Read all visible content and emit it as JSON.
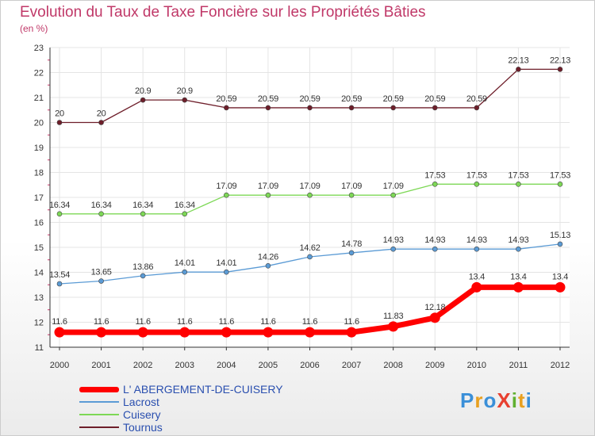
{
  "chart_data": {
    "type": "line",
    "title": "Evolution du Taux de Taxe Foncière sur les Propriétés Bâties",
    "subtitle": "(en %)",
    "x": [
      "2000",
      "2001",
      "2002",
      "2003",
      "2004",
      "2005",
      "2006",
      "2007",
      "2008",
      "2009",
      "2010",
      "2011",
      "2012"
    ],
    "ylim": [
      11,
      23
    ],
    "yticks": [
      11,
      12,
      13,
      14,
      15,
      16,
      17,
      18,
      19,
      20,
      21,
      22,
      23
    ],
    "grid": true,
    "legend_position": "bottom-left",
    "series": [
      {
        "name": "L' ABERGEMENT-DE-CUISERY",
        "color": "#ff0000",
        "values": [
          11.6,
          11.6,
          11.6,
          11.6,
          11.6,
          11.6,
          11.6,
          11.6,
          11.83,
          12.18,
          13.4,
          13.4,
          13.4
        ],
        "labels": [
          "11.6",
          "11.6",
          "11.6",
          "11.6",
          "11.6",
          "11.6",
          "11.6",
          "11.6",
          "11.83",
          "12.18",
          "13.4",
          "13.4",
          "13.4"
        ]
      },
      {
        "name": "Lacrost",
        "color": "#5b9bd5",
        "values": [
          13.54,
          13.65,
          13.86,
          14.01,
          14.01,
          14.26,
          14.62,
          14.78,
          14.93,
          14.93,
          14.93,
          14.93,
          15.13
        ],
        "labels": [
          "13.54",
          "13.65",
          "13.86",
          "14.01",
          "14.01",
          "14.26",
          "14.62",
          "14.78",
          "14.93",
          "14.93",
          "14.93",
          "14.93",
          "15.13"
        ]
      },
      {
        "name": "Cuisery",
        "color": "#7dd856",
        "values": [
          16.34,
          16.34,
          16.34,
          16.34,
          17.09,
          17.09,
          17.09,
          17.09,
          17.09,
          17.53,
          17.53,
          17.53,
          17.53
        ],
        "labels": [
          "16.34",
          "16.34",
          "16.34",
          "16.34",
          "17.09",
          "17.09",
          "17.09",
          "17.09",
          "17.09",
          "17.53",
          "17.53",
          "17.53",
          "17.53"
        ]
      },
      {
        "name": "Tournus",
        "color": "#6e1e2a",
        "values": [
          20,
          20,
          20.9,
          20.9,
          20.59,
          20.59,
          20.59,
          20.59,
          20.59,
          20.59,
          20.59,
          22.13,
          22.13
        ],
        "labels": [
          "20",
          "20",
          "20.9",
          "20.9",
          "20.59",
          "20.59",
          "20.59",
          "20.59",
          "20.59",
          "20.59",
          "20.59",
          "22.13",
          "22.13"
        ]
      }
    ]
  },
  "logo": {
    "text": "ProXiti",
    "letters": [
      "P",
      "r",
      "o",
      "X",
      "i",
      "t",
      "i"
    ],
    "colors": [
      "#3a8fd8",
      "#e8a020",
      "#3a8fd8",
      "#e84030",
      "#60b030",
      "#e8a020",
      "#3a8fd8"
    ]
  }
}
